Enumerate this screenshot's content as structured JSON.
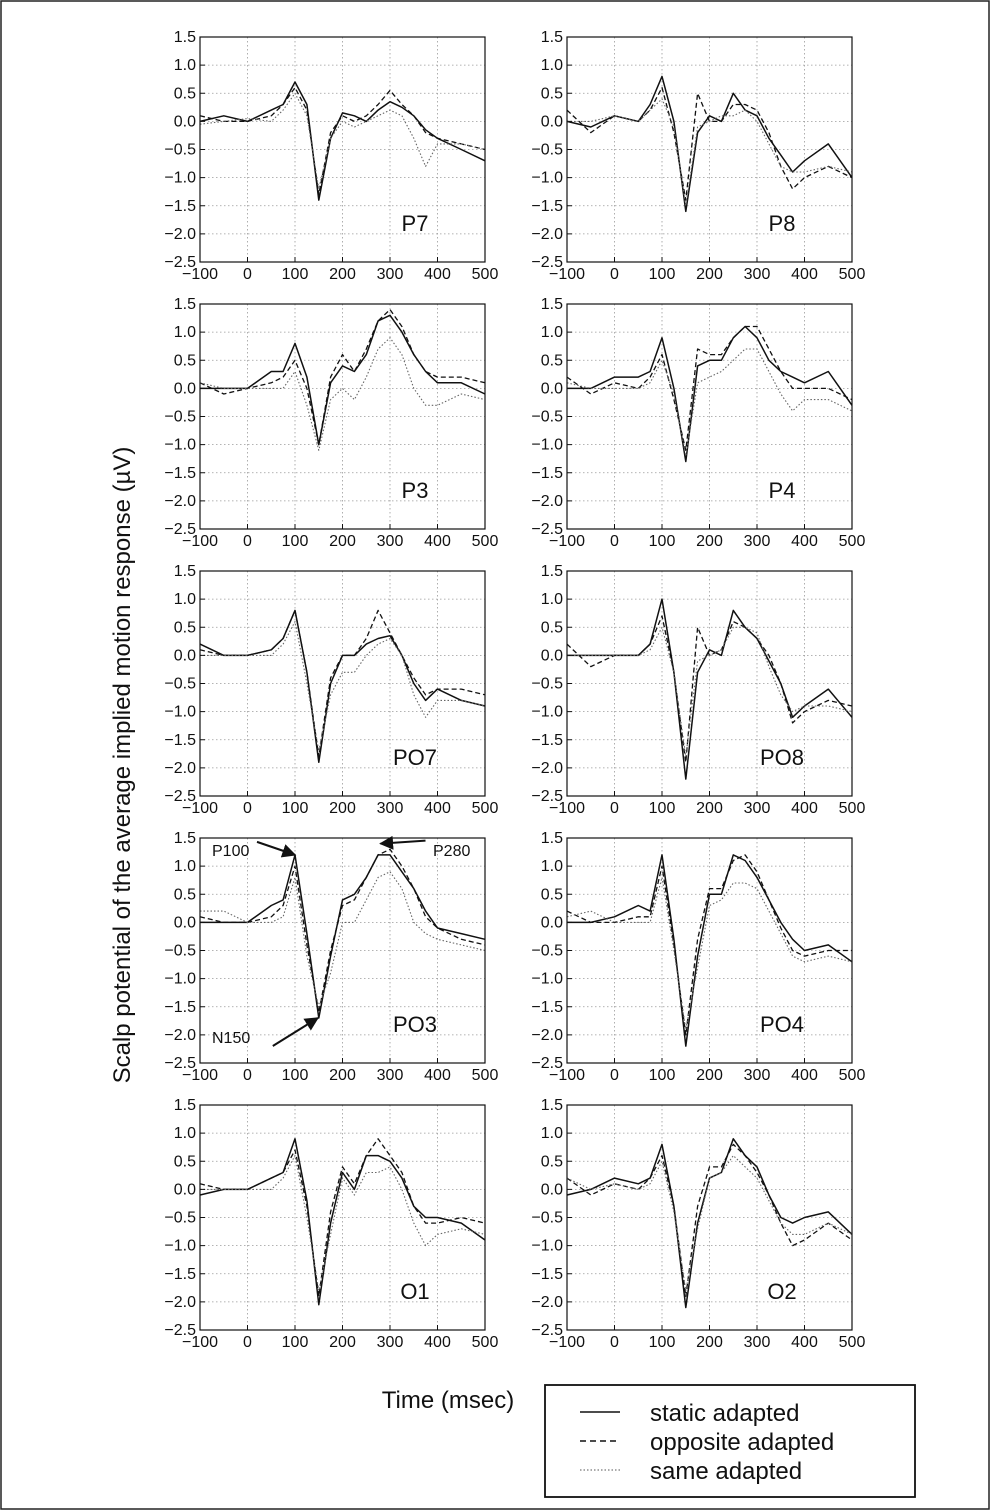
{
  "chart_data": {
    "type": "line",
    "ylabel": "Scalp potential of the average implied motion response (µV)",
    "xlabel": "Time (msec)",
    "xlim": [
      -100,
      500
    ],
    "ylim": [
      -2.5,
      1.5
    ],
    "xticks": [
      -100,
      0,
      100,
      200,
      300,
      400,
      500
    ],
    "yticks": [
      1.5,
      1.0,
      0.5,
      0.0,
      -0.5,
      -1.0,
      -1.5,
      -2.0,
      -2.5
    ],
    "xtick_labels": [
      "−100",
      "0",
      "100",
      "200",
      "300",
      "400",
      "500"
    ],
    "ytick_labels": [
      "1.5",
      "1.0",
      "0.5",
      "0.0",
      "−0.5",
      "−1.0",
      "−1.5",
      "−2.0",
      "−2.5"
    ],
    "grid": true,
    "legend": {
      "placement": "bottom-right",
      "entries": [
        {
          "label": "static adapted",
          "style": "solid"
        },
        {
          "label": "opposite adapted",
          "style": "dashed"
        },
        {
          "label": "same adapted",
          "style": "dotted"
        }
      ]
    },
    "x": [
      -100,
      -50,
      0,
      50,
      75,
      100,
      125,
      150,
      175,
      200,
      225,
      250,
      275,
      300,
      325,
      350,
      375,
      400,
      450,
      500
    ],
    "panels": [
      {
        "label": "P7",
        "series": [
          {
            "name": "static adapted",
            "style": "solid",
            "values": [
              0.0,
              0.1,
              0.0,
              0.2,
              0.3,
              0.7,
              0.3,
              -1.4,
              -0.3,
              0.15,
              0.1,
              0.0,
              0.2,
              0.35,
              0.25,
              0.1,
              -0.15,
              -0.3,
              -0.5,
              -0.7
            ]
          },
          {
            "name": "opposite adapted",
            "style": "dashed",
            "values": [
              0.1,
              0.0,
              0.0,
              0.1,
              0.3,
              0.6,
              0.2,
              -1.3,
              -0.2,
              0.1,
              0.0,
              0.1,
              0.3,
              0.55,
              0.3,
              0.1,
              -0.2,
              -0.3,
              -0.4,
              -0.5
            ]
          },
          {
            "name": "same adapted",
            "style": "dotted",
            "values": [
              -0.05,
              0.0,
              0.05,
              0.0,
              0.2,
              0.5,
              0.1,
              -1.2,
              -0.3,
              0.0,
              -0.1,
              0.0,
              0.1,
              0.2,
              0.1,
              -0.3,
              -0.8,
              -0.4,
              -0.4,
              -0.5
            ]
          }
        ]
      },
      {
        "label": "P8",
        "series": [
          {
            "name": "static adapted",
            "style": "solid",
            "values": [
              0.0,
              -0.1,
              0.1,
              0.0,
              0.3,
              0.8,
              0.0,
              -1.6,
              -0.2,
              0.1,
              0.0,
              0.5,
              0.2,
              0.1,
              -0.3,
              -0.6,
              -0.9,
              -0.7,
              -0.4,
              -1.0
            ]
          },
          {
            "name": "opposite adapted",
            "style": "dashed",
            "values": [
              0.2,
              -0.2,
              0.1,
              0.0,
              0.2,
              0.6,
              -0.2,
              -1.4,
              0.5,
              0.0,
              0.0,
              0.3,
              0.3,
              0.2,
              -0.2,
              -0.8,
              -1.2,
              -1.0,
              -0.8,
              -1.0
            ]
          },
          {
            "name": "same adapted",
            "style": "dotted",
            "values": [
              0.0,
              0.0,
              0.1,
              0.0,
              0.2,
              0.4,
              -0.1,
              -1.5,
              -0.1,
              0.0,
              0.1,
              0.1,
              0.2,
              0.0,
              -0.4,
              -0.8,
              -0.9,
              -0.9,
              -0.8,
              -0.9
            ]
          }
        ]
      },
      {
        "label": "P3",
        "series": [
          {
            "name": "static adapted",
            "style": "solid",
            "values": [
              0.0,
              0.0,
              0.0,
              0.3,
              0.3,
              0.8,
              0.2,
              -1.0,
              0.1,
              0.4,
              0.3,
              0.6,
              1.2,
              1.3,
              1.0,
              0.6,
              0.3,
              0.1,
              0.1,
              -0.1
            ]
          },
          {
            "name": "opposite adapted",
            "style": "dashed",
            "values": [
              0.1,
              -0.1,
              0.0,
              0.1,
              0.2,
              0.5,
              0.0,
              -1.0,
              0.2,
              0.6,
              0.3,
              0.7,
              1.2,
              1.4,
              1.1,
              0.6,
              0.3,
              0.2,
              0.2,
              0.1
            ]
          },
          {
            "name": "same adapted",
            "style": "dotted",
            "values": [
              0.1,
              0.0,
              0.0,
              0.0,
              0.0,
              0.3,
              -0.3,
              -1.1,
              -0.2,
              0.0,
              -0.2,
              0.2,
              0.7,
              0.9,
              0.6,
              0.0,
              -0.3,
              -0.3,
              -0.1,
              -0.2
            ]
          }
        ]
      },
      {
        "label": "P4",
        "series": [
          {
            "name": "static adapted",
            "style": "solid",
            "values": [
              0.0,
              0.0,
              0.2,
              0.2,
              0.3,
              0.9,
              0.0,
              -1.3,
              0.4,
              0.5,
              0.5,
              0.9,
              1.1,
              0.9,
              0.5,
              0.3,
              0.2,
              0.1,
              0.3,
              -0.3
            ]
          },
          {
            "name": "opposite adapted",
            "style": "dashed",
            "values": [
              0.2,
              -0.1,
              0.1,
              0.0,
              0.2,
              0.6,
              -0.2,
              -1.1,
              0.7,
              0.6,
              0.6,
              0.9,
              1.1,
              1.1,
              0.7,
              0.3,
              0.0,
              0.0,
              0.0,
              -0.2
            ]
          },
          {
            "name": "same adapted",
            "style": "dotted",
            "values": [
              0.1,
              0.0,
              0.0,
              0.0,
              0.1,
              0.5,
              -0.1,
              -1.2,
              0.1,
              0.2,
              0.3,
              0.5,
              0.7,
              0.7,
              0.3,
              -0.1,
              -0.4,
              -0.2,
              -0.2,
              -0.4
            ]
          }
        ]
      },
      {
        "label": "PO7",
        "series": [
          {
            "name": "static adapted",
            "style": "solid",
            "values": [
              0.2,
              0.0,
              0.0,
              0.1,
              0.3,
              0.8,
              -0.3,
              -1.9,
              -0.5,
              0.0,
              0.0,
              0.2,
              0.3,
              0.35,
              0.0,
              -0.5,
              -0.8,
              -0.6,
              -0.8,
              -0.9
            ]
          },
          {
            "name": "opposite adapted",
            "style": "dashed",
            "values": [
              0.1,
              0.0,
              0.0,
              0.1,
              0.3,
              0.8,
              -0.3,
              -1.8,
              -0.4,
              0.0,
              0.0,
              0.3,
              0.8,
              0.4,
              0.0,
              -0.4,
              -0.7,
              -0.6,
              -0.6,
              -0.7
            ]
          },
          {
            "name": "same adapted",
            "style": "dotted",
            "values": [
              0.0,
              0.0,
              0.0,
              0.0,
              0.2,
              0.6,
              -0.5,
              -1.7,
              -0.7,
              -0.3,
              -0.3,
              0.0,
              0.2,
              0.3,
              0.0,
              -0.7,
              -1.1,
              -0.8,
              -0.8,
              -0.9
            ]
          }
        ]
      },
      {
        "label": "PO8",
        "series": [
          {
            "name": "static adapted",
            "style": "solid",
            "values": [
              0.0,
              0.0,
              0.0,
              0.0,
              0.2,
              1.0,
              -0.3,
              -2.2,
              -0.3,
              0.1,
              0.0,
              0.8,
              0.5,
              0.3,
              -0.1,
              -0.5,
              -1.1,
              -0.9,
              -0.6,
              -1.1
            ]
          },
          {
            "name": "opposite adapted",
            "style": "dashed",
            "values": [
              0.2,
              -0.2,
              0.0,
              0.0,
              0.2,
              0.7,
              -0.3,
              -1.9,
              0.5,
              0.0,
              0.1,
              0.6,
              0.5,
              0.3,
              0.0,
              -0.5,
              -1.2,
              -1.0,
              -0.8,
              -0.9
            ]
          },
          {
            "name": "same adapted",
            "style": "dotted",
            "values": [
              0.0,
              0.0,
              0.0,
              0.0,
              0.1,
              0.5,
              -0.3,
              -1.8,
              -0.1,
              0.0,
              0.1,
              0.5,
              0.5,
              0.4,
              -0.2,
              -0.7,
              -1.0,
              -0.9,
              -0.9,
              -1.0
            ]
          }
        ]
      },
      {
        "label": "PO3",
        "series": [
          {
            "name": "static adapted",
            "style": "solid",
            "values": [
              0.0,
              0.0,
              0.0,
              0.3,
              0.4,
              1.2,
              -0.2,
              -1.7,
              -0.6,
              0.4,
              0.5,
              0.8,
              1.2,
              1.2,
              0.9,
              0.6,
              0.2,
              -0.1,
              -0.2,
              -0.3
            ]
          },
          {
            "name": "opposite adapted",
            "style": "dashed",
            "values": [
              0.1,
              0.0,
              0.0,
              0.1,
              0.3,
              1.0,
              -0.4,
              -1.6,
              -0.5,
              0.3,
              0.4,
              0.8,
              1.2,
              1.3,
              1.0,
              0.6,
              0.1,
              -0.1,
              -0.3,
              -0.4
            ]
          },
          {
            "name": "same adapted",
            "style": "dotted",
            "values": [
              0.2,
              0.2,
              0.0,
              0.0,
              0.1,
              0.8,
              -0.6,
              -1.5,
              -0.9,
              0.0,
              0.0,
              0.4,
              0.8,
              0.9,
              0.6,
              0.0,
              -0.2,
              -0.3,
              -0.4,
              -0.5
            ]
          }
        ]
      },
      {
        "label": "PO4",
        "series": [
          {
            "name": "static adapted",
            "style": "solid",
            "values": [
              0.0,
              0.0,
              0.1,
              0.3,
              0.2,
              1.2,
              -0.3,
              -2.2,
              -0.6,
              0.5,
              0.5,
              1.2,
              1.1,
              0.8,
              0.4,
              0.0,
              -0.3,
              -0.5,
              -0.4,
              -0.7
            ]
          },
          {
            "name": "opposite adapted",
            "style": "dashed",
            "values": [
              0.2,
              0.0,
              0.0,
              0.1,
              0.1,
              1.0,
              -0.4,
              -2.0,
              -0.3,
              0.6,
              0.6,
              1.1,
              1.2,
              0.9,
              0.4,
              -0.1,
              -0.5,
              -0.6,
              -0.5,
              -0.5
            ]
          },
          {
            "name": "same adapted",
            "style": "dotted",
            "values": [
              0.1,
              0.2,
              0.0,
              0.0,
              0.0,
              0.8,
              -0.5,
              -1.9,
              -0.8,
              0.3,
              0.4,
              0.7,
              0.7,
              0.6,
              0.2,
              -0.2,
              -0.6,
              -0.7,
              -0.6,
              -0.7
            ]
          }
        ]
      },
      {
        "label": "O1",
        "series": [
          {
            "name": "static adapted",
            "style": "solid",
            "values": [
              -0.1,
              0.0,
              0.0,
              0.2,
              0.3,
              0.9,
              -0.2,
              -2.05,
              -0.6,
              0.3,
              0.0,
              0.6,
              0.6,
              0.5,
              0.2,
              -0.3,
              -0.5,
              -0.5,
              -0.6,
              -0.9
            ]
          },
          {
            "name": "opposite adapted",
            "style": "dashed",
            "values": [
              0.1,
              0.0,
              0.0,
              0.2,
              0.3,
              0.7,
              -0.3,
              -1.9,
              -0.4,
              0.4,
              0.1,
              0.6,
              0.9,
              0.6,
              0.3,
              -0.3,
              -0.6,
              -0.6,
              -0.5,
              -0.6
            ]
          },
          {
            "name": "same adapted",
            "style": "dotted",
            "values": [
              0.0,
              0.0,
              0.0,
              0.0,
              0.2,
              0.6,
              -0.5,
              -1.8,
              -0.8,
              0.2,
              -0.1,
              0.3,
              0.3,
              0.4,
              0.0,
              -0.6,
              -1.0,
              -0.8,
              -0.7,
              -0.8
            ]
          }
        ]
      },
      {
        "label": "O2",
        "series": [
          {
            "name": "static adapted",
            "style": "solid",
            "values": [
              -0.1,
              0.0,
              0.2,
              0.1,
              0.2,
              0.8,
              -0.3,
              -2.1,
              -0.6,
              0.2,
              0.3,
              0.9,
              0.6,
              0.4,
              -0.1,
              -0.5,
              -0.6,
              -0.5,
              -0.4,
              -0.8
            ]
          },
          {
            "name": "opposite adapted",
            "style": "dashed",
            "values": [
              0.2,
              -0.1,
              0.1,
              0.0,
              0.2,
              0.6,
              -0.3,
              -1.9,
              -0.3,
              0.4,
              0.4,
              0.8,
              0.6,
              0.3,
              -0.1,
              -0.6,
              -1.0,
              -0.9,
              -0.6,
              -0.9
            ]
          },
          {
            "name": "same adapted",
            "style": "dotted",
            "values": [
              0.2,
              0.0,
              0.1,
              0.0,
              0.1,
              0.5,
              -0.4,
              -1.8,
              -0.7,
              0.2,
              0.3,
              0.6,
              0.4,
              0.2,
              -0.2,
              -0.6,
              -0.8,
              -0.8,
              -0.6,
              -0.8
            ]
          }
        ]
      }
    ],
    "annotations": [
      {
        "panel": "PO3",
        "text": "P100",
        "target_x": 100,
        "target_y": 1.2
      },
      {
        "panel": "PO3",
        "text": "P280",
        "target_x": 280,
        "target_y": 1.4
      },
      {
        "panel": "PO3",
        "text": "N150",
        "target_x": 148,
        "target_y": -1.7
      }
    ]
  }
}
